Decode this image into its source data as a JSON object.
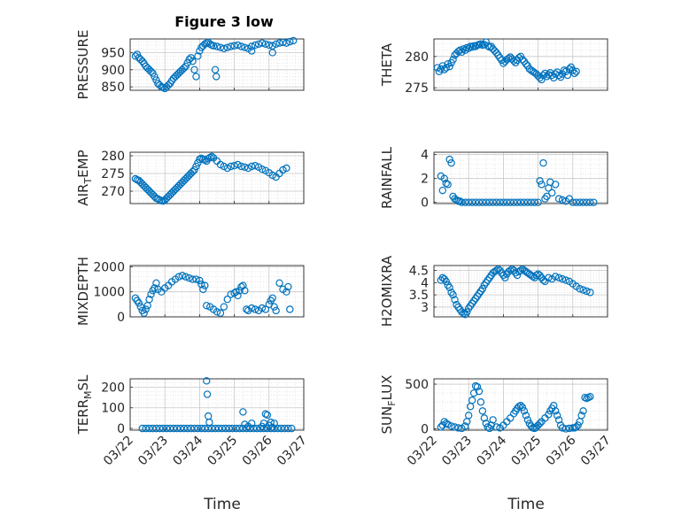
{
  "figure": {
    "title": "Figure 3 low",
    "xlabel": "Time",
    "marker_color": "#0072BD",
    "grid_color": "#d9d9d9",
    "x_ticks": [
      "03/22",
      "03/23",
      "03/24",
      "03/25",
      "03/26",
      "03/27"
    ]
  },
  "chart_data": [
    {
      "type": "scatter",
      "ylabel": "PRESSURE",
      "ylabel_sub": "",
      "ylabel_rest": "",
      "ylim": [
        840,
        990
      ],
      "yticks": [
        850,
        900,
        950
      ],
      "x": [
        0.15,
        0.2,
        0.25,
        0.3,
        0.35,
        0.4,
        0.45,
        0.5,
        0.55,
        0.6,
        0.65,
        0.7,
        0.75,
        0.8,
        0.85,
        0.9,
        0.95,
        1.0,
        1.05,
        1.1,
        1.15,
        1.2,
        1.25,
        1.3,
        1.35,
        1.4,
        1.45,
        1.5,
        1.55,
        1.6,
        1.65,
        1.7,
        1.75,
        1.8,
        1.85,
        1.9,
        1.95,
        2.0,
        2.05,
        2.1,
        2.15,
        2.2,
        2.25,
        2.3,
        2.35,
        2.4,
        2.5,
        2.6,
        2.7,
        2.8,
        2.9,
        3.0,
        3.1,
        3.2,
        3.3,
        3.4,
        3.5,
        3.6,
        3.7,
        3.8,
        3.9,
        4.0,
        4.1,
        4.2,
        4.3,
        4.4,
        4.5,
        4.6,
        4.7,
        2.45,
        2.48,
        3.5,
        4.1
      ],
      "y": [
        940,
        945,
        935,
        930,
        925,
        918,
        910,
        905,
        900,
        895,
        890,
        880,
        870,
        860,
        855,
        850,
        848,
        845,
        850,
        855,
        860,
        868,
        875,
        880,
        885,
        890,
        895,
        900,
        905,
        910,
        920,
        930,
        935,
        925,
        900,
        880,
        940,
        955,
        965,
        970,
        975,
        978,
        980,
        975,
        972,
        970,
        968,
        965,
        962,
        965,
        968,
        970,
        972,
        968,
        965,
        962,
        968,
        972,
        975,
        978,
        975,
        972,
        970,
        975,
        978,
        980,
        978,
        982,
        985,
        900,
        880,
        955,
        950
      ]
    },
    {
      "type": "scatter",
      "ylabel": "THETA",
      "ylabel_sub": "",
      "ylabel_rest": "",
      "ylim": [
        274.6,
        282.8
      ],
      "yticks": [
        275,
        280
      ],
      "x": [
        0.1,
        0.15,
        0.2,
        0.25,
        0.3,
        0.35,
        0.4,
        0.45,
        0.5,
        0.55,
        0.6,
        0.65,
        0.7,
        0.75,
        0.8,
        0.85,
        0.9,
        0.95,
        1.0,
        1.05,
        1.1,
        1.15,
        1.2,
        1.25,
        1.3,
        1.35,
        1.4,
        1.45,
        1.5,
        1.55,
        1.6,
        1.65,
        1.7,
        1.75,
        1.8,
        1.85,
        1.9,
        1.95,
        2.0,
        2.05,
        2.1,
        2.15,
        2.2,
        2.25,
        2.3,
        2.35,
        2.4,
        2.45,
        2.5,
        2.55,
        2.6,
        2.65,
        2.7,
        2.75,
        2.8,
        2.85,
        2.9,
        2.95,
        3.0,
        3.05,
        3.1,
        3.15,
        3.2,
        3.25,
        3.3,
        3.35,
        3.4,
        3.45,
        3.5,
        3.55,
        3.6,
        3.65,
        3.7,
        3.75,
        3.8,
        3.85,
        3.9,
        3.95,
        4.0,
        4.05,
        4.1
      ],
      "y": [
        278.2,
        277.6,
        278.0,
        278.5,
        277.9,
        278.2,
        278.8,
        278.4,
        279.0,
        279.5,
        280.2,
        280.5,
        280.8,
        281.0,
        280.7,
        281.2,
        281.0,
        281.4,
        281.3,
        281.6,
        281.5,
        281.7,
        281.6,
        281.8,
        281.9,
        282.0,
        281.8,
        281.9,
        282.3,
        281.7,
        281.5,
        281.6,
        281.2,
        280.9,
        280.6,
        280.2,
        279.8,
        279.4,
        278.9,
        279.2,
        279.5,
        279.7,
        279.9,
        279.6,
        279.3,
        279.0,
        279.4,
        279.8,
        280.0,
        279.5,
        279.2,
        278.8,
        278.5,
        278.0,
        277.8,
        277.6,
        277.4,
        277.2,
        276.9,
        276.6,
        276.3,
        277.0,
        277.3,
        276.8,
        277.1,
        277.4,
        277.0,
        276.6,
        277.2,
        277.5,
        277.0,
        276.7,
        277.2,
        277.8,
        277.6,
        277.0,
        278.0,
        278.3,
        277.8,
        277.3,
        277.6
      ]
    },
    {
      "type": "scatter",
      "ylabel": "AIR",
      "ylabel_sub": "T",
      "ylabel_rest": "EMP",
      "ylim": [
        266.5,
        281
      ],
      "yticks": [
        270,
        275,
        280
      ],
      "x": [
        0.15,
        0.2,
        0.25,
        0.3,
        0.35,
        0.4,
        0.45,
        0.5,
        0.55,
        0.6,
        0.65,
        0.7,
        0.75,
        0.8,
        0.85,
        0.9,
        0.95,
        1.0,
        1.05,
        1.1,
        1.15,
        1.2,
        1.25,
        1.3,
        1.35,
        1.4,
        1.45,
        1.5,
        1.55,
        1.6,
        1.65,
        1.7,
        1.75,
        1.8,
        1.85,
        1.9,
        1.95,
        2.0,
        2.05,
        2.1,
        2.15,
        2.2,
        2.25,
        2.3,
        2.35,
        2.4,
        2.5,
        2.6,
        2.7,
        2.8,
        2.9,
        3.0,
        3.1,
        3.2,
        3.3,
        3.4,
        3.5,
        3.6,
        3.7,
        3.8,
        3.9,
        4.0,
        4.1,
        4.2,
        4.3,
        4.4,
        4.5
      ],
      "y": [
        273.5,
        273.2,
        273.0,
        272.5,
        272.0,
        271.5,
        271.0,
        270.5,
        270.0,
        269.5,
        269.0,
        268.5,
        268.0,
        267.8,
        267.5,
        267.3,
        267.2,
        267.5,
        268.0,
        268.5,
        269.0,
        269.5,
        270.0,
        270.5,
        271.0,
        271.5,
        272.0,
        272.5,
        273.0,
        273.5,
        274.0,
        274.5,
        275.0,
        275.5,
        276.0,
        277.0,
        278.0,
        279.0,
        279.3,
        279.0,
        278.8,
        278.5,
        279.2,
        279.5,
        279.8,
        279.4,
        278.5,
        277.5,
        277.0,
        276.5,
        277.0,
        277.2,
        277.5,
        277.0,
        276.8,
        276.5,
        277.0,
        277.2,
        276.8,
        276.2,
        275.8,
        275.2,
        274.5,
        274.0,
        275.0,
        276.0,
        276.5
      ]
    },
    {
      "type": "scatter",
      "ylabel": "RAINFALL",
      "ylabel_sub": "",
      "ylabel_rest": "",
      "ylim": [
        -0.1,
        4.2
      ],
      "yticks": [
        0,
        2,
        4
      ],
      "x": [
        0.2,
        0.25,
        0.3,
        0.35,
        0.4,
        0.45,
        0.5,
        0.55,
        0.6,
        0.65,
        0.7,
        0.75,
        0.8,
        0.9,
        1.0,
        1.1,
        1.2,
        1.3,
        1.4,
        1.5,
        1.6,
        1.7,
        1.8,
        1.9,
        2.0,
        2.1,
        2.2,
        2.3,
        2.4,
        2.5,
        2.6,
        2.7,
        2.8,
        2.9,
        3.0,
        3.05,
        3.1,
        3.15,
        3.2,
        3.25,
        3.3,
        3.35,
        3.4,
        3.5,
        3.6,
        3.7,
        3.8,
        3.9,
        4.0,
        4.1,
        4.2,
        4.3,
        4.4,
        4.5,
        4.6
      ],
      "y": [
        2.2,
        1.0,
        2.0,
        1.6,
        1.5,
        3.6,
        3.3,
        0.5,
        0.3,
        0.2,
        0.1,
        0.1,
        0.0,
        0.0,
        0.0,
        0.0,
        0.0,
        0.0,
        0.0,
        0.0,
        0.0,
        0.0,
        0.0,
        0.0,
        0.0,
        0.0,
        0.0,
        0.0,
        0.0,
        0.0,
        0.0,
        0.0,
        0.0,
        0.0,
        0.0,
        1.8,
        1.5,
        3.3,
        0.3,
        0.5,
        1.2,
        1.7,
        0.8,
        1.5,
        0.3,
        0.2,
        0.1,
        0.3,
        0.0,
        0.0,
        0.0,
        0.0,
        0.0,
        0.0,
        0.0
      ]
    },
    {
      "type": "scatter",
      "ylabel": "MIXDEPTH",
      "ylabel_sub": "",
      "ylabel_rest": "",
      "ylim": [
        0,
        2050
      ],
      "yticks": [
        0,
        1000,
        2000
      ],
      "x": [
        0.15,
        0.2,
        0.25,
        0.3,
        0.35,
        0.4,
        0.45,
        0.5,
        0.55,
        0.6,
        0.65,
        0.7,
        0.75,
        0.8,
        0.9,
        1.0,
        1.1,
        1.2,
        1.3,
        1.4,
        1.5,
        1.6,
        1.7,
        1.8,
        1.9,
        2.0,
        2.05,
        2.1,
        2.15,
        2.2,
        2.3,
        2.4,
        2.5,
        2.6,
        2.7,
        2.8,
        2.9,
        3.0,
        3.05,
        3.1,
        3.15,
        3.2,
        3.25,
        3.3,
        3.35,
        3.4,
        3.5,
        3.6,
        3.7,
        3.8,
        3.9,
        4.0,
        4.05,
        4.1,
        4.15,
        4.2,
        4.3,
        4.4,
        4.5,
        4.55,
        4.6
      ],
      "y": [
        750,
        650,
        550,
        400,
        250,
        150,
        300,
        450,
        700,
        900,
        1050,
        1150,
        1350,
        1100,
        1000,
        1150,
        1250,
        1400,
        1500,
        1600,
        1650,
        1600,
        1550,
        1500,
        1500,
        1450,
        1300,
        1100,
        1250,
        450,
        400,
        300,
        200,
        150,
        400,
        700,
        900,
        950,
        1000,
        850,
        1050,
        1200,
        1250,
        1050,
        300,
        250,
        350,
        300,
        250,
        350,
        300,
        500,
        650,
        750,
        400,
        250,
        1350,
        1100,
        1000,
        1200,
        300
      ]
    },
    {
      "type": "scatter",
      "ylabel": "H2OMIXRA",
      "ylabel_sub": "",
      "ylabel_rest": "",
      "ylim": [
        2.6,
        4.7
      ],
      "yticks": [
        3,
        3.5,
        4,
        4.5
      ],
      "x": [
        0.2,
        0.25,
        0.3,
        0.35,
        0.4,
        0.45,
        0.5,
        0.55,
        0.6,
        0.65,
        0.7,
        0.75,
        0.8,
        0.85,
        0.9,
        0.95,
        1.0,
        1.05,
        1.1,
        1.15,
        1.2,
        1.25,
        1.3,
        1.35,
        1.4,
        1.45,
        1.5,
        1.55,
        1.6,
        1.65,
        1.7,
        1.75,
        1.8,
        1.85,
        1.9,
        1.95,
        2.0,
        2.05,
        2.1,
        2.15,
        2.2,
        2.25,
        2.3,
        2.35,
        2.4,
        2.45,
        2.5,
        2.55,
        2.6,
        2.65,
        2.7,
        2.75,
        2.8,
        2.85,
        2.9,
        2.95,
        3.0,
        3.05,
        3.1,
        3.15,
        3.2,
        3.3,
        3.4,
        3.5,
        3.6,
        3.7,
        3.8,
        3.9,
        4.0,
        4.1,
        4.2,
        4.3,
        4.4,
        4.5
      ],
      "y": [
        4.1,
        4.2,
        4.15,
        4.05,
        3.9,
        3.8,
        3.6,
        3.5,
        3.3,
        3.1,
        3.0,
        2.9,
        2.8,
        2.75,
        2.7,
        2.8,
        2.95,
        3.05,
        3.15,
        3.25,
        3.35,
        3.45,
        3.55,
        3.65,
        3.75,
        3.9,
        4.0,
        4.1,
        4.2,
        4.3,
        4.4,
        4.45,
        4.5,
        4.55,
        4.5,
        4.4,
        4.3,
        4.2,
        4.35,
        4.45,
        4.5,
        4.55,
        4.5,
        4.4,
        4.3,
        4.45,
        4.5,
        4.55,
        4.5,
        4.45,
        4.4,
        4.35,
        4.3,
        4.25,
        4.2,
        4.3,
        4.35,
        4.3,
        4.2,
        4.1,
        4.05,
        4.2,
        4.15,
        4.25,
        4.2,
        4.15,
        4.1,
        4.05,
        3.95,
        3.85,
        3.75,
        3.7,
        3.65,
        3.6
      ]
    },
    {
      "type": "scatter",
      "ylabel": "TERR",
      "ylabel_sub": "M",
      "ylabel_rest": "SL",
      "ylim": [
        -8,
        240
      ],
      "yticks": [
        0,
        100,
        200
      ],
      "x": [
        0.35,
        0.45,
        0.55,
        0.65,
        0.75,
        0.85,
        0.95,
        1.05,
        1.15,
        1.25,
        1.35,
        1.45,
        1.55,
        1.65,
        1.75,
        1.85,
        1.95,
        2.05,
        2.15,
        2.25,
        2.35,
        2.45,
        2.55,
        2.65,
        2.75,
        2.85,
        2.95,
        3.05,
        3.15,
        3.25,
        3.35,
        3.45,
        3.55,
        3.65,
        3.75,
        3.85,
        3.95,
        4.05,
        4.15,
        4.25,
        4.35,
        4.45,
        4.55,
        4.65,
        2.2,
        2.22,
        2.25,
        2.28,
        3.25,
        3.3,
        3.4,
        3.5,
        3.8,
        3.85,
        3.9,
        3.95,
        4.0,
        4.05,
        4.1,
        4.15
      ],
      "y": [
        0,
        0,
        0,
        0,
        0,
        0,
        0,
        0,
        0,
        0,
        0,
        0,
        0,
        0,
        0,
        0,
        0,
        0,
        0,
        0,
        0,
        0,
        0,
        0,
        0,
        0,
        0,
        0,
        0,
        0,
        0,
        0,
        0,
        0,
        0,
        0,
        0,
        0,
        0,
        0,
        0,
        0,
        0,
        0,
        230,
        165,
        60,
        30,
        80,
        20,
        10,
        25,
        10,
        25,
        70,
        65,
        15,
        30,
        5,
        25
      ]
    },
    {
      "type": "scatter",
      "ylabel": "SUN",
      "ylabel_sub": "F",
      "ylabel_rest": "LUX",
      "ylim": [
        -15,
        560
      ],
      "yticks": [
        0,
        500
      ],
      "x": [
        0.2,
        0.25,
        0.3,
        0.35,
        0.4,
        0.5,
        0.6,
        0.7,
        0.8,
        0.9,
        0.95,
        1.0,
        1.05,
        1.1,
        1.15,
        1.2,
        1.25,
        1.3,
        1.35,
        1.4,
        1.45,
        1.5,
        1.55,
        1.6,
        1.65,
        1.7,
        1.8,
        1.9,
        2.0,
        2.1,
        2.2,
        2.3,
        2.35,
        2.4,
        2.45,
        2.5,
        2.55,
        2.6,
        2.65,
        2.7,
        2.75,
        2.8,
        2.85,
        2.9,
        2.95,
        3.0,
        3.05,
        3.1,
        3.2,
        3.3,
        3.35,
        3.4,
        3.45,
        3.5,
        3.55,
        3.6,
        3.65,
        3.7,
        3.8,
        3.9,
        4.0,
        4.05,
        4.1,
        4.15,
        4.2,
        4.25,
        4.3,
        4.35,
        4.4,
        4.45,
        4.5
      ],
      "y": [
        20,
        40,
        80,
        60,
        50,
        30,
        20,
        10,
        5,
        30,
        80,
        150,
        250,
        320,
        400,
        480,
        470,
        420,
        300,
        200,
        120,
        60,
        20,
        5,
        40,
        100,
        20,
        10,
        40,
        80,
        120,
        170,
        200,
        230,
        250,
        260,
        240,
        200,
        150,
        100,
        60,
        30,
        10,
        5,
        20,
        40,
        60,
        80,
        120,
        160,
        200,
        230,
        260,
        200,
        150,
        100,
        40,
        10,
        0,
        5,
        10,
        10,
        20,
        40,
        80,
        150,
        200,
        350,
        340,
        350,
        360
      ]
    }
  ]
}
